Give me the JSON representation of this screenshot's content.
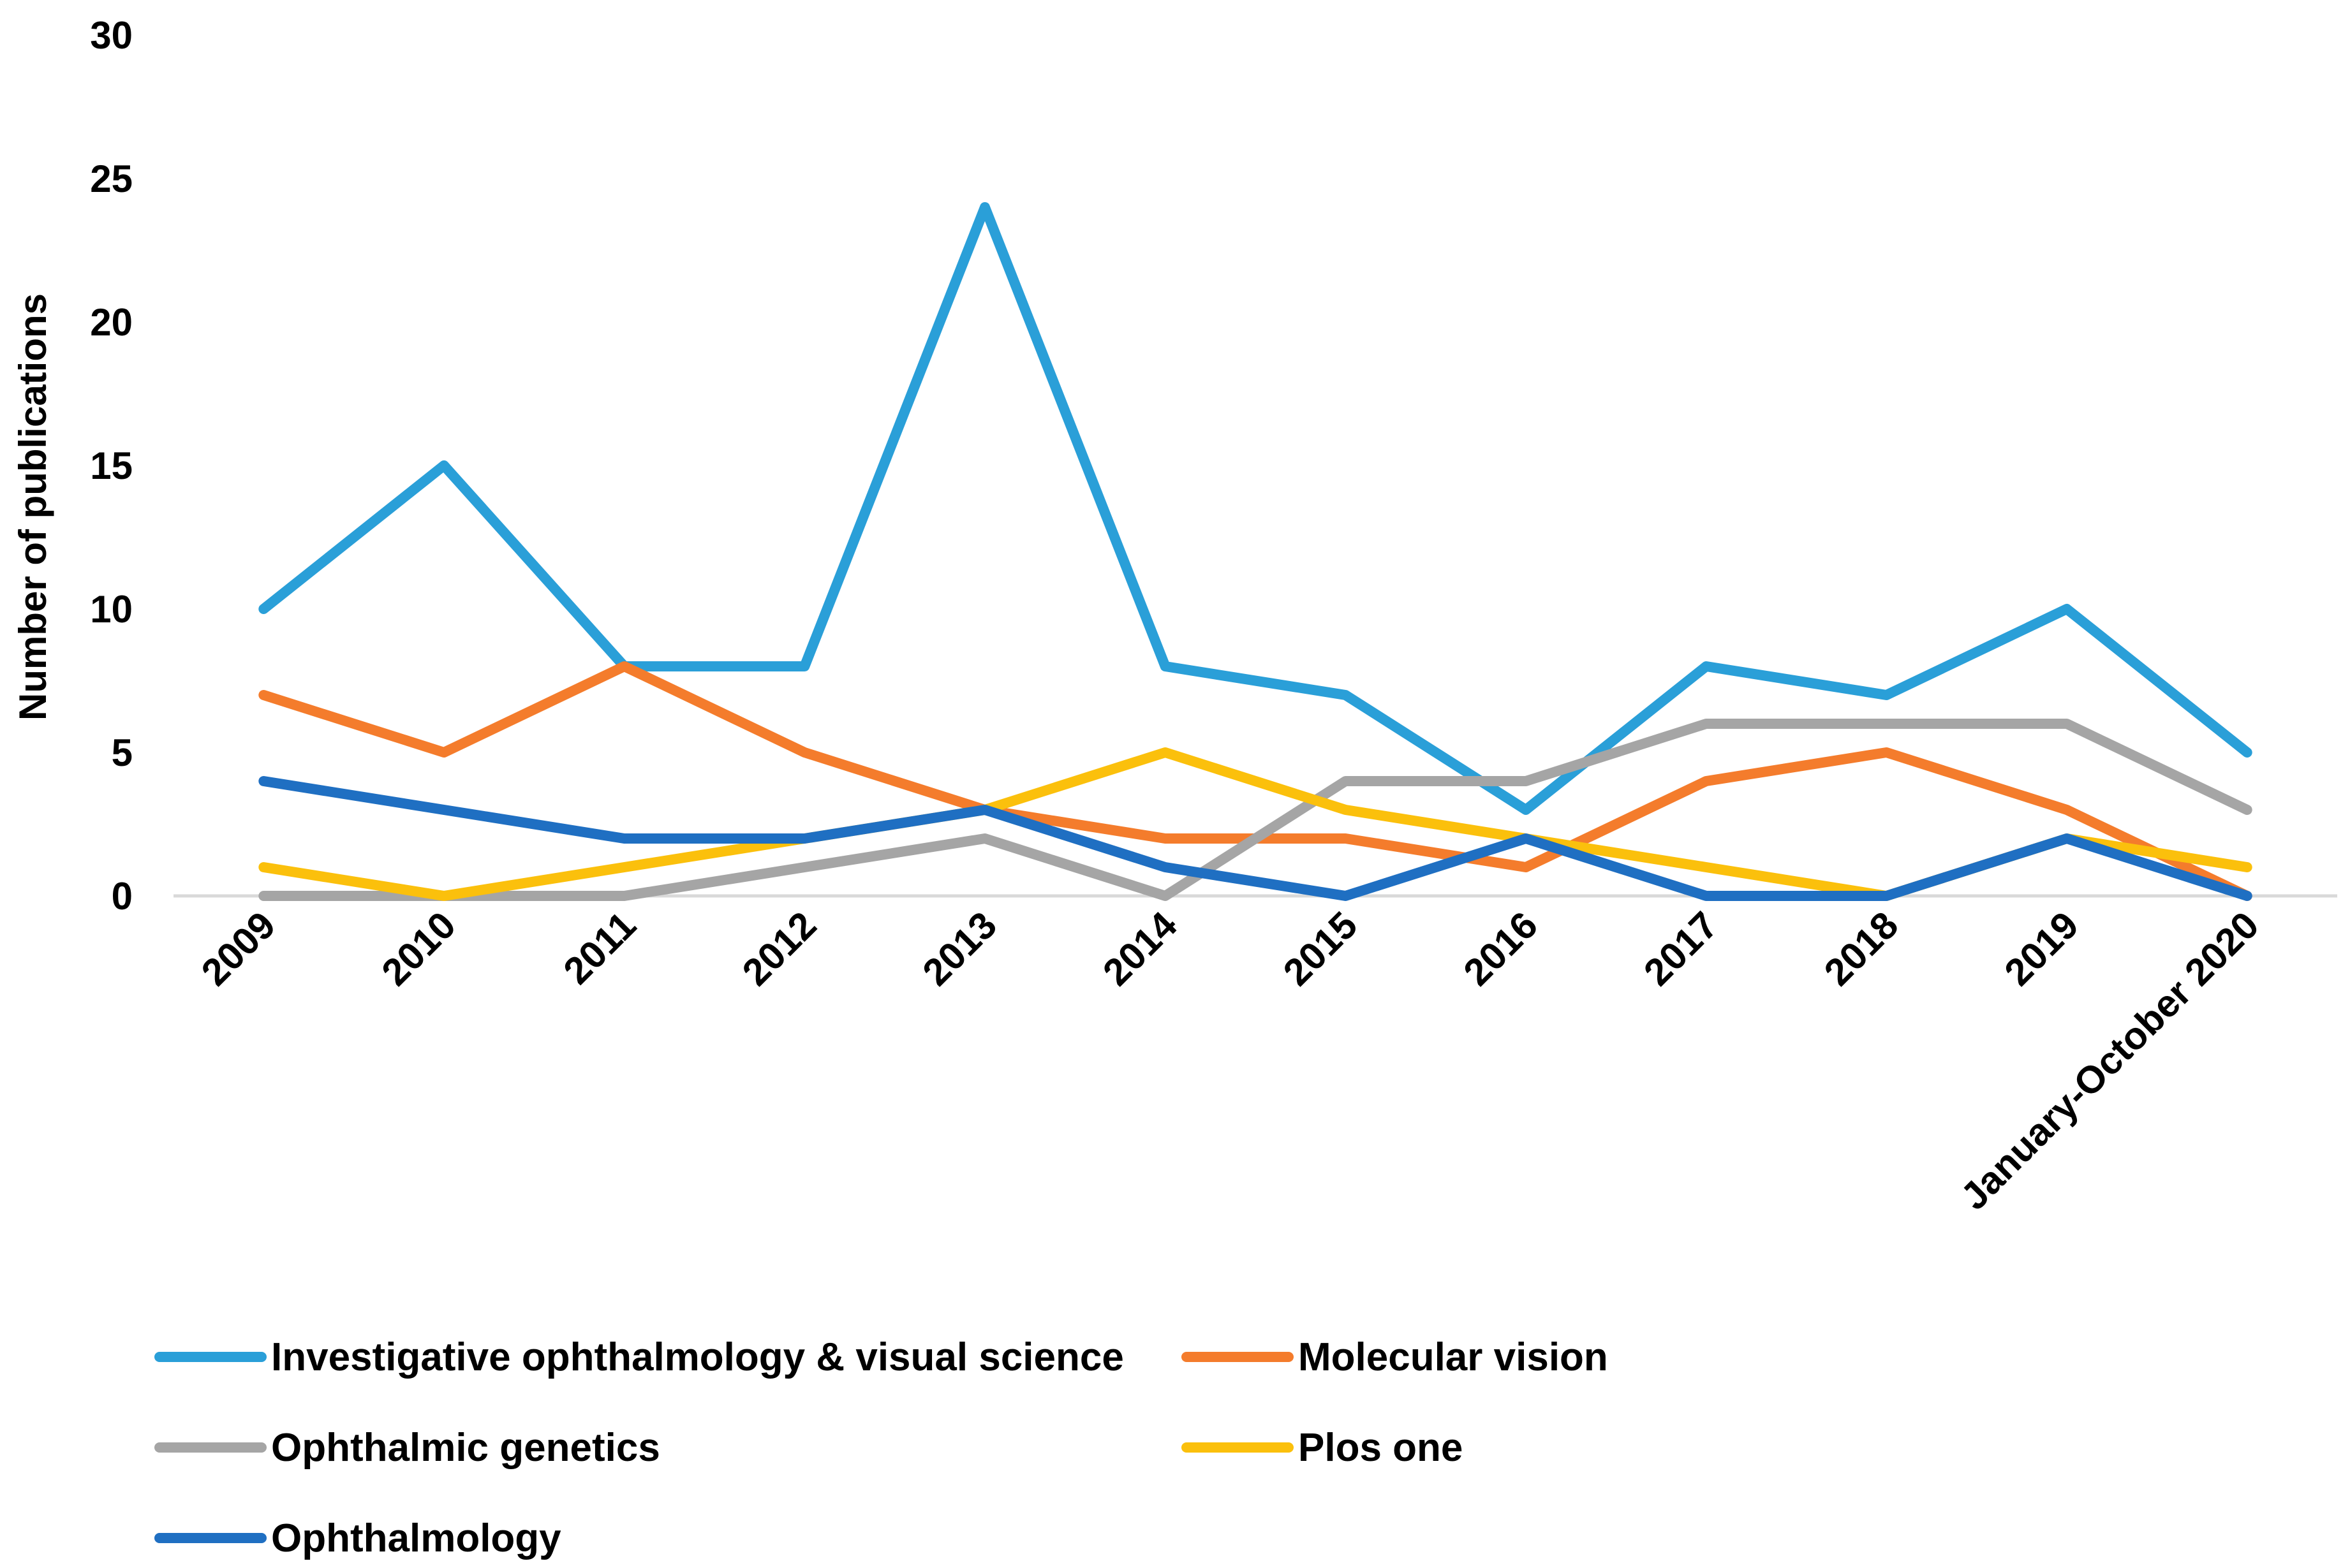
{
  "chart_data": {
    "type": "line",
    "title": "",
    "xlabel": "",
    "ylabel": "Number of publications",
    "ylim": [
      0,
      30
    ],
    "yticks": [
      0,
      5,
      10,
      15,
      20,
      25,
      30
    ],
    "grid": false,
    "legend_position": "bottom",
    "categories": [
      "2009",
      "2010",
      "2011",
      "2012",
      "2013",
      "2014",
      "2015",
      "2016",
      "2017",
      "2018",
      "2019",
      "January-October 2020"
    ],
    "series": [
      {
        "name": "Investigative ophthalmology & visual science",
        "color": "#2a9fd8",
        "values": [
          10,
          15,
          8,
          8,
          24,
          8,
          7,
          3,
          8,
          7,
          10,
          5
        ]
      },
      {
        "name": "Molecular vision",
        "color": "#f47c2c",
        "values": [
          7,
          5,
          8,
          5,
          3,
          2,
          2,
          1,
          4,
          5,
          3,
          0
        ]
      },
      {
        "name": "Ophthalmic genetics",
        "color": "#a5a5a5",
        "values": [
          0,
          0,
          0,
          1,
          2,
          0,
          4,
          4,
          6,
          6,
          6,
          3
        ]
      },
      {
        "name": "Plos one",
        "color": "#fbc00c",
        "values": [
          1,
          0,
          1,
          2,
          3,
          5,
          3,
          2,
          1,
          0,
          2,
          1
        ]
      },
      {
        "name": "Ophthalmology",
        "color": "#1f6fc2",
        "values": [
          4,
          3,
          2,
          2,
          3,
          1,
          0,
          2,
          0,
          0,
          2,
          0
        ]
      }
    ]
  }
}
